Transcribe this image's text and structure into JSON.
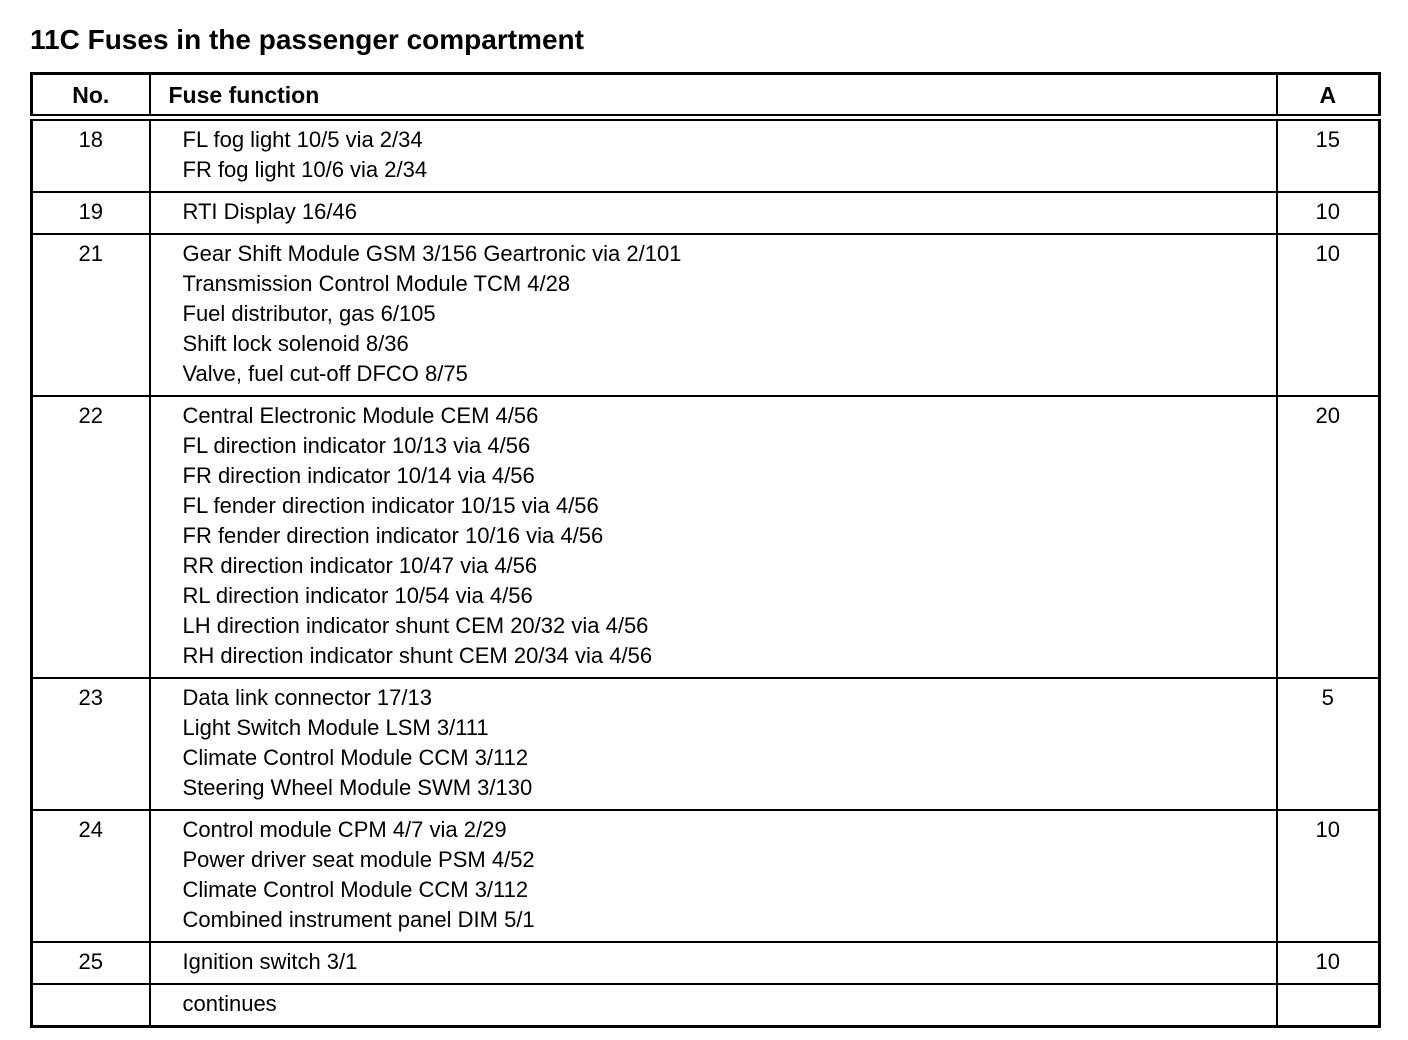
{
  "title": "11C Fuses in the passenger compartment",
  "table": {
    "columns": {
      "no": "No.",
      "function": "Fuse function",
      "amp": "A"
    },
    "rows": [
      {
        "no": "18",
        "lines": [
          "FL fog light 10/5 via 2/34",
          "FR fog light 10/6 via 2/34"
        ],
        "amp": "15"
      },
      {
        "no": "19",
        "lines": [
          "RTI Display 16/46"
        ],
        "amp": "10"
      },
      {
        "no": "21",
        "lines": [
          "Gear Shift Module GSM 3/156 Geartronic via 2/101",
          "Transmission Control Module TCM 4/28",
          "Fuel distributor, gas 6/105",
          "Shift lock solenoid 8/36",
          "Valve, fuel cut-off DFCO 8/75"
        ],
        "amp": "10"
      },
      {
        "no": "22",
        "lines": [
          "Central Electronic Module CEM 4/56",
          "FL direction indicator 10/13 via 4/56",
          "FR direction indicator 10/14 via 4/56",
          "FL fender direction indicator 10/15 via 4/56",
          "FR fender direction indicator 10/16 via 4/56",
          "RR direction indicator 10/47 via 4/56",
          "RL direction indicator 10/54 via 4/56",
          "LH direction indicator shunt CEM 20/32 via 4/56",
          "RH direction indicator shunt CEM 20/34 via 4/56"
        ],
        "amp": "20"
      },
      {
        "no": "23",
        "lines": [
          "Data link connector 17/13",
          "Light Switch Module LSM 3/111",
          "Climate Control Module CCM 3/112",
          "Steering Wheel Module SWM 3/130"
        ],
        "amp": "5"
      },
      {
        "no": "24",
        "lines": [
          "Control module CPM 4/7 via 2/29",
          "Power driver seat module PSM 4/52",
          "Climate Control Module CCM 3/112",
          "Combined instrument panel DIM 5/1"
        ],
        "amp": "10"
      },
      {
        "no": "25",
        "lines": [
          "Ignition switch 3/1"
        ],
        "amp": "10"
      },
      {
        "no": "",
        "lines": [
          "continues"
        ],
        "amp": ""
      }
    ]
  }
}
